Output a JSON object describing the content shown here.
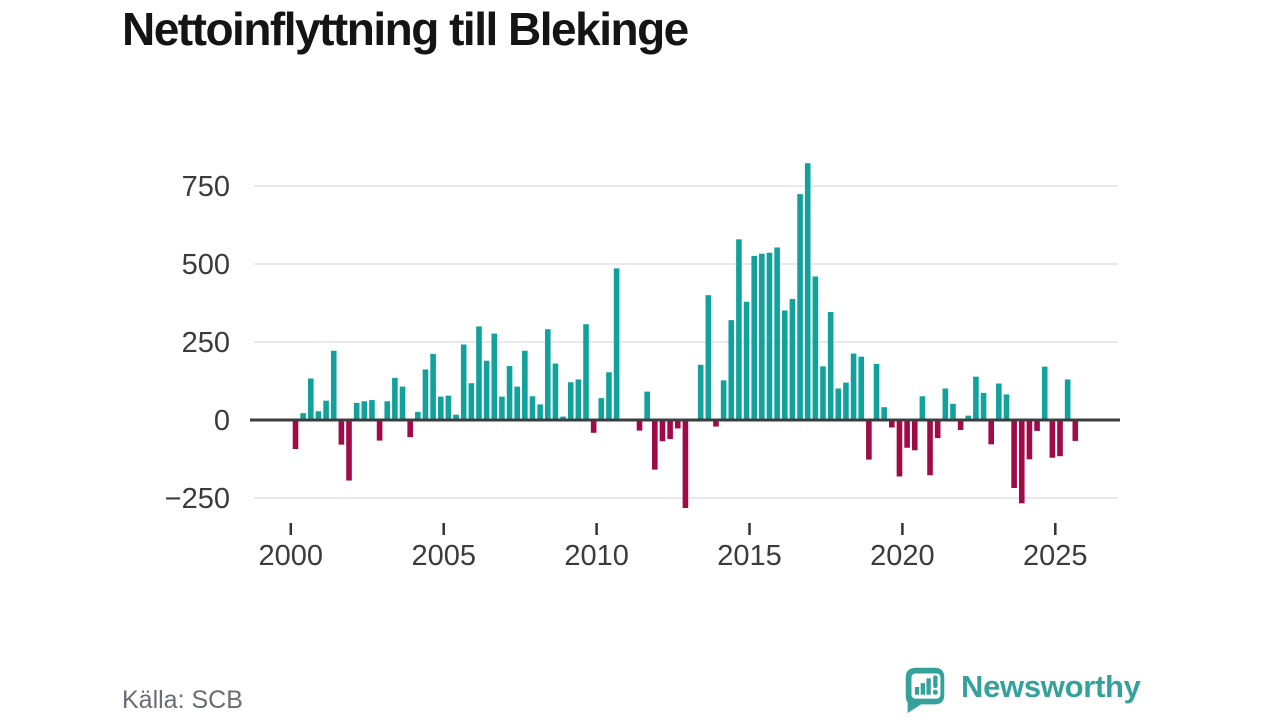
{
  "title": "Nettoinflyttning till Blekinge",
  "source": "Källa: SCB",
  "brand": {
    "name": "Newsworthy"
  },
  "colors": {
    "positive_bar": "#11a29e",
    "negative_bar": "#a00a46",
    "zero_line": "#3d3d3d",
    "gridline": "#e2e2e2",
    "axis_text": "#3b3b3b",
    "brand_teal": "#35a19b"
  },
  "chart_data": {
    "type": "bar",
    "title": "Nettoinflyttning till Blekinge",
    "ylabel": "",
    "xlabel": "",
    "frequency": "quarterly",
    "start": "2000 Q1",
    "end": "2025 Q3",
    "grid": true,
    "ylim": [
      -320,
      870
    ],
    "yticks": [
      750,
      500,
      250,
      0,
      -250
    ],
    "xticks": [
      "2000",
      "2005",
      "2010",
      "2015",
      "2020",
      "2025"
    ],
    "xtick_every_n_bars": 20,
    "x": [
      "2000 Q1",
      "2000 Q2",
      "2000 Q3",
      "2000 Q4",
      "2001 Q1",
      "2001 Q2",
      "2001 Q3",
      "2001 Q4",
      "2002 Q1",
      "2002 Q2",
      "2002 Q3",
      "2002 Q4",
      "2003 Q1",
      "2003 Q2",
      "2003 Q3",
      "2003 Q4",
      "2004 Q1",
      "2004 Q2",
      "2004 Q3",
      "2004 Q4",
      "2005 Q1",
      "2005 Q2",
      "2005 Q3",
      "2005 Q4",
      "2006 Q1",
      "2006 Q2",
      "2006 Q3",
      "2006 Q4",
      "2007 Q1",
      "2007 Q2",
      "2007 Q3",
      "2007 Q4",
      "2008 Q1",
      "2008 Q2",
      "2008 Q3",
      "2008 Q4",
      "2009 Q1",
      "2009 Q2",
      "2009 Q3",
      "2009 Q4",
      "2010 Q1",
      "2010 Q2",
      "2010 Q3",
      "2010 Q4",
      "2011 Q1",
      "2011 Q2",
      "2011 Q3",
      "2011 Q4",
      "2012 Q1",
      "2012 Q2",
      "2012 Q3",
      "2012 Q4",
      "2013 Q1",
      "2013 Q2",
      "2013 Q3",
      "2013 Q4",
      "2014 Q1",
      "2014 Q2",
      "2014 Q3",
      "2014 Q4",
      "2015 Q1",
      "2015 Q2",
      "2015 Q3",
      "2015 Q4",
      "2016 Q1",
      "2016 Q2",
      "2016 Q3",
      "2016 Q4",
      "2017 Q1",
      "2017 Q2",
      "2017 Q3",
      "2017 Q4",
      "2018 Q1",
      "2018 Q2",
      "2018 Q3",
      "2018 Q4",
      "2019 Q1",
      "2019 Q2",
      "2019 Q3",
      "2019 Q4",
      "2020 Q1",
      "2020 Q2",
      "2020 Q3",
      "2020 Q4",
      "2021 Q1",
      "2021 Q2",
      "2021 Q3",
      "2021 Q4",
      "2022 Q1",
      "2022 Q2",
      "2022 Q3",
      "2022 Q4",
      "2023 Q1",
      "2023 Q2",
      "2023 Q3",
      "2023 Q4",
      "2024 Q1",
      "2024 Q2",
      "2024 Q3",
      "2024 Q4",
      "2025 Q1",
      "2025 Q2",
      "2025 Q3"
    ],
    "values": [
      -93,
      22,
      133,
      28,
      62,
      222,
      -79,
      -194,
      55,
      60,
      64,
      -66,
      60,
      135,
      107,
      -55,
      26,
      162,
      212,
      75,
      78,
      17,
      242,
      118,
      300,
      190,
      277,
      75,
      173,
      107,
      222,
      76,
      50,
      291,
      181,
      11,
      121,
      130,
      307,
      -41,
      70,
      153,
      486,
      0,
      0,
      -34,
      91,
      -159,
      -68,
      -61,
      -27,
      -282,
      0,
      177,
      400,
      -21,
      127,
      320,
      579,
      379,
      526,
      533,
      536,
      553,
      351,
      388,
      724,
      823,
      460,
      172,
      346,
      101,
      120,
      213,
      203,
      -127,
      180,
      41,
      -24,
      -181,
      -89,
      -97,
      76,
      -177,
      -58,
      101,
      52,
      -32,
      14,
      139,
      87,
      -78,
      117,
      82,
      -218,
      -267,
      -126,
      -35,
      171,
      -121,
      -116,
      130,
      -67
    ]
  }
}
